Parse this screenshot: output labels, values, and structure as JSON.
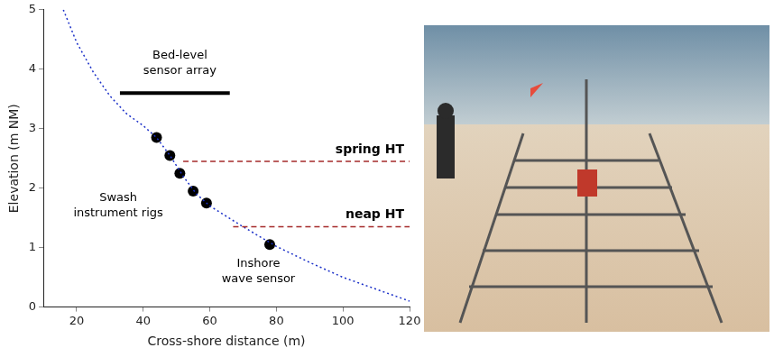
{
  "chart_data": {
    "type": "scatter",
    "x_label": "Cross-shore distance (m)",
    "y_label": "Elevation (m NM)",
    "xlim": [
      10,
      120
    ],
    "xticks": [
      20,
      40,
      60,
      80,
      100,
      120
    ],
    "ylim": [
      0,
      5
    ],
    "yticks": [
      0,
      1,
      2,
      3,
      4,
      5
    ],
    "grid": false,
    "series": [
      {
        "color": "#1a2fc8",
        "line_style": "dotted",
        "marker": "none",
        "x": [
          16,
          20,
          25,
          30,
          35,
          40,
          44,
          48,
          52,
          56,
          60,
          70,
          80,
          90,
          100,
          110,
          120
        ],
        "values": [
          5.0,
          4.45,
          3.95,
          3.55,
          3.25,
          3.05,
          2.85,
          2.55,
          2.2,
          1.9,
          1.7,
          1.35,
          1.02,
          0.75,
          0.5,
          0.3,
          0.1
        ]
      },
      {
        "color": "#000000",
        "line_style": "none",
        "marker": "circle",
        "x": [
          44,
          48,
          51,
          55,
          59,
          78
        ],
        "values": [
          2.85,
          2.55,
          2.25,
          1.95,
          1.75,
          1.05
        ]
      }
    ],
    "lines": [
      {
        "label": "spring HT",
        "x": [
          52,
          120
        ],
        "y": 2.45,
        "color": "#a52a2a",
        "line_style": "dashed"
      },
      {
        "label": "neap HT",
        "x": [
          67,
          120
        ],
        "y": 1.35,
        "color": "#a52a2a",
        "line_style": "dashed"
      },
      {
        "x": [
          33,
          66
        ],
        "y": 3.6,
        "color": "#000000",
        "line_style": "solid"
      }
    ],
    "annotations": [
      {
        "text": [
          "Bed-level",
          "sensor array"
        ],
        "x": 51,
        "y": 4.1
      },
      {
        "text": [
          "Swash",
          "instrument rigs"
        ],
        "x": 32.5,
        "y": 1.7
      },
      {
        "text": [
          "Inshore",
          "wave sensor"
        ],
        "x": 74.6,
        "y": 0.6
      }
    ]
  }
}
